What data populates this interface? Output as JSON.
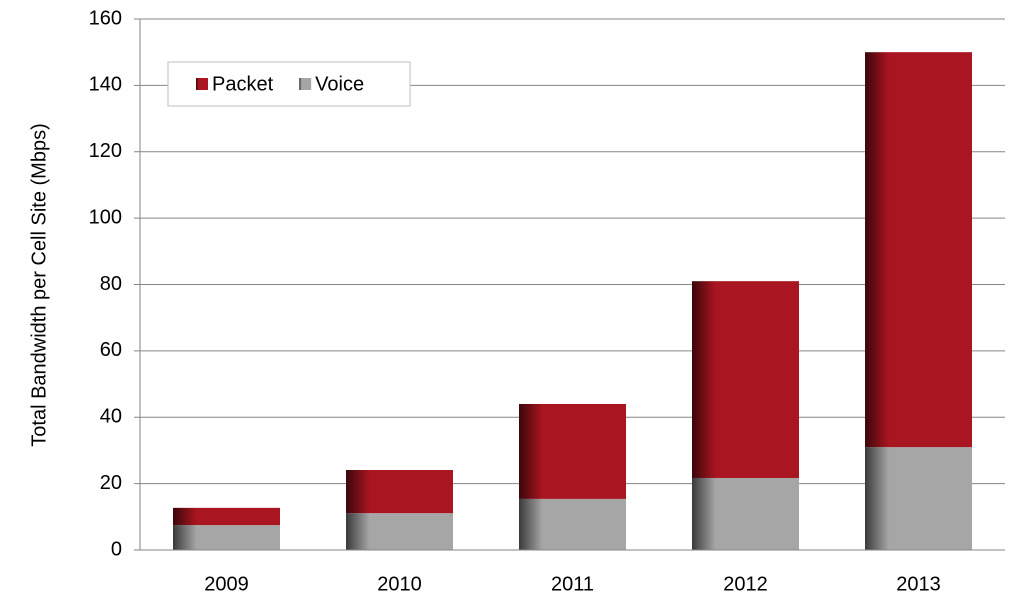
{
  "chart_data": {
    "type": "stacked_bar",
    "y_label": "Total Bandwidth per Cell Site (Mbps)",
    "categories": [
      "2009",
      "2010",
      "2011",
      "2012",
      "2013"
    ],
    "series": [
      {
        "name": "Voice",
        "color": "#a6a6a6",
        "values": [
          7.5,
          11.1,
          15.4,
          21.7,
          31
        ]
      },
      {
        "name": "Packet",
        "color": "#a91520",
        "values": [
          5.2,
          13,
          28.6,
          59.3,
          119
        ]
      }
    ],
    "ylim": [
      0,
      160
    ],
    "yticks": [
      0,
      20,
      40,
      60,
      80,
      100,
      120,
      140,
      160
    ],
    "grid": true,
    "legend": "upper left"
  }
}
